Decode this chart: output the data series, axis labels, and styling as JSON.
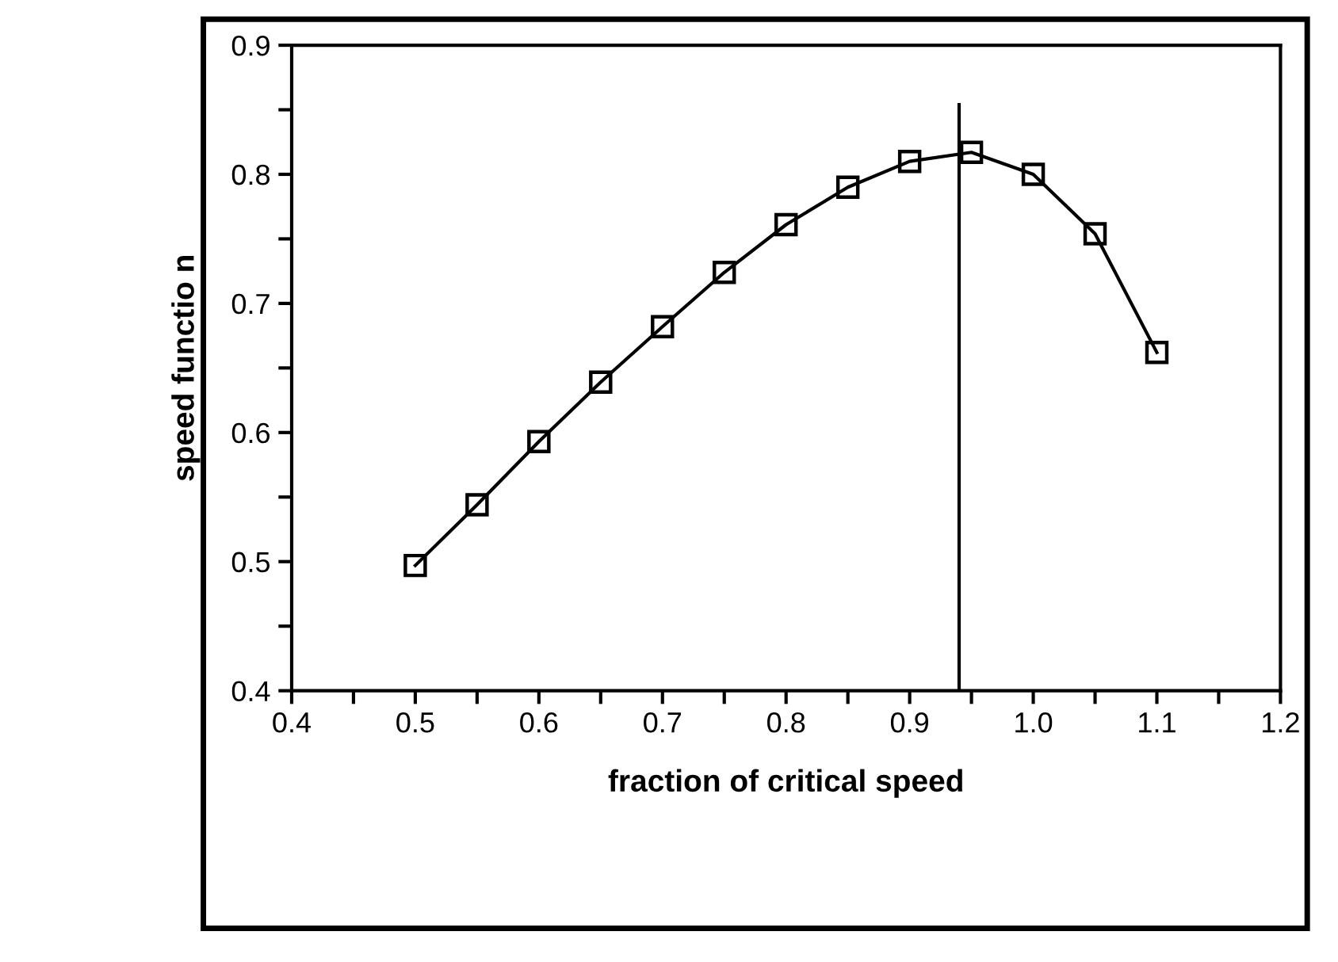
{
  "chart_data": {
    "type": "line",
    "xlabel": "fraction of critical speed",
    "ylabel": "speed functio n",
    "x": [
      0.5,
      0.55,
      0.6,
      0.65,
      0.7,
      0.75,
      0.8,
      0.85,
      0.9,
      0.95,
      1.0,
      1.05,
      1.1
    ],
    "series": [
      {
        "color": "#000000",
        "marker": "square",
        "values": [
          0.497,
          0.544,
          0.593,
          0.639,
          0.682,
          0.724,
          0.761,
          0.79,
          0.81,
          0.817,
          0.8,
          0.754,
          0.662
        ]
      },
      {
        "color": "#000000",
        "marker": "none",
        "x": [
          0.94,
          0.94
        ],
        "values": [
          0.4,
          0.854
        ]
      }
    ],
    "xlim": [
      0.4,
      1.2
    ],
    "ylim": [
      0.4,
      0.9
    ],
    "xticks": [
      0.4,
      {
        "value": 0.45,
        "label": null
      },
      0.5,
      {
        "value": 0.55,
        "label": null
      },
      0.6,
      {
        "value": 0.65,
        "label": null
      },
      0.7,
      {
        "value": 0.75,
        "label": null
      },
      0.8,
      {
        "value": 0.85,
        "label": null
      },
      0.9,
      {
        "value": 0.95,
        "label": null
      },
      {
        "value": 1.0,
        "label": "1.0"
      },
      {
        "value": 1.05,
        "label": null
      },
      1.1,
      {
        "value": 1.15,
        "label": null
      },
      1.2
    ],
    "yticks": [
      0.4,
      {
        "value": 0.45,
        "label": null
      },
      0.5,
      {
        "value": 0.55,
        "label": null
      },
      0.6,
      {
        "value": 0.65,
        "label": null
      },
      0.7,
      {
        "value": 0.75,
        "label": null
      },
      0.8,
      {
        "value": 0.85,
        "label": null
      },
      0.9
    ],
    "grid": false,
    "legend": false
  }
}
